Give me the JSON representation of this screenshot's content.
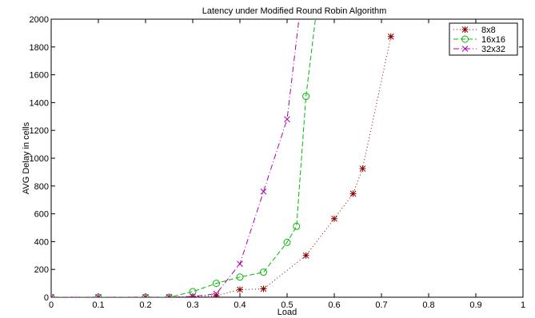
{
  "chart_data": {
    "type": "line",
    "title": "Latency under Modified Round Robin Algorithm",
    "xlabel": "Load",
    "ylabel": "AVG Delay in cells",
    "xlim": [
      0,
      1
    ],
    "ylim": [
      0,
      2000
    ],
    "xticks": [
      "0",
      "0.1",
      "0.2",
      "0.3",
      "0.4",
      "0.5",
      "0.6",
      "0.7",
      "0.8",
      "0.9",
      "1"
    ],
    "yticks": [
      "0",
      "200",
      "400",
      "600",
      "800",
      "1000",
      "1200",
      "1400",
      "1600",
      "1800",
      "2000"
    ],
    "grid": false,
    "legend_position": "top-right",
    "series": [
      {
        "name": "8x8",
        "color": "#8b0000",
        "line_style": "dotted",
        "marker": "asterisk",
        "x": [
          0,
          0.1,
          0.2,
          0.25,
          0.3,
          0.35,
          0.4,
          0.45,
          0.54,
          0.6,
          0.64,
          0.66,
          0.72
        ],
        "y": [
          0,
          0,
          0,
          0,
          5,
          10,
          55,
          60,
          300,
          565,
          745,
          925,
          1875
        ]
      },
      {
        "name": "16x16",
        "color": "#00bb00",
        "line_style": "dashed",
        "marker": "circle",
        "x": [
          0,
          0.1,
          0.2,
          0.25,
          0.3,
          0.35,
          0.4,
          0.45,
          0.5,
          0.52,
          0.54,
          0.56
        ],
        "y": [
          0,
          0,
          0,
          0,
          40,
          100,
          145,
          180,
          395,
          510,
          1445,
          2000
        ],
        "marked": [
          true,
          true,
          true,
          true,
          true,
          true,
          true,
          true,
          true,
          true,
          true,
          false
        ]
      },
      {
        "name": "32x32",
        "color": "#aa00aa",
        "line_style": "dashdot",
        "marker": "x",
        "x": [
          0,
          0.1,
          0.2,
          0.25,
          0.3,
          0.35,
          0.4,
          0.45,
          0.5,
          0.525
        ],
        "y": [
          0,
          0,
          0,
          0,
          5,
          25,
          240,
          760,
          1280,
          2000
        ],
        "marked": [
          true,
          true,
          true,
          true,
          true,
          true,
          true,
          true,
          true,
          false
        ]
      }
    ]
  }
}
